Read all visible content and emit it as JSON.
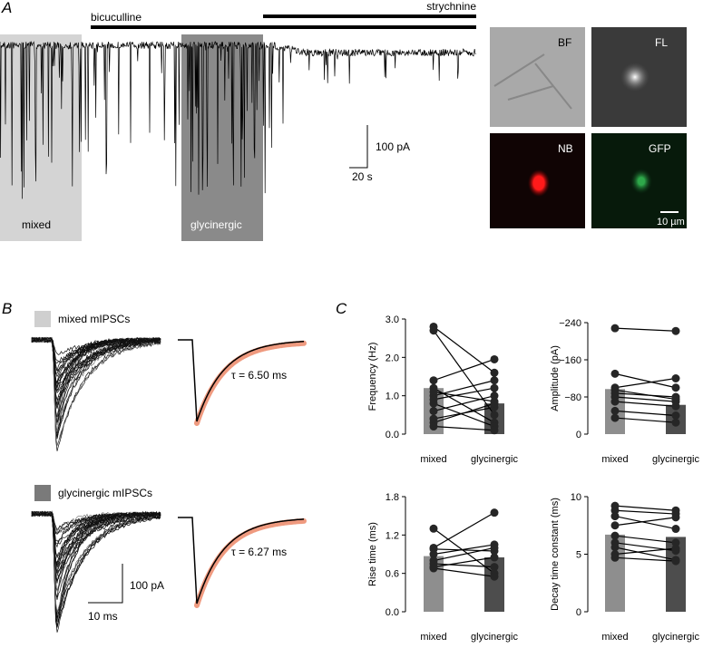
{
  "panels": {
    "A": {
      "label": "A",
      "bicuculline": "bicuculline",
      "strychnine": "strychnine",
      "scale_current": "100 pA",
      "scale_time": "20 s",
      "mixed": "mixed",
      "glycinergic": "glycinergic",
      "images": [
        "BF",
        "FL",
        "NB",
        "GFP"
      ],
      "scale_micron": "10 µm"
    },
    "B": {
      "label": "B",
      "mixed_legend": "mixed mIPSCs",
      "glycinergic_legend": "glycinergic mIPSCs",
      "tau_mixed": "τ = 6.50 ms",
      "tau_glycinergic": "τ = 6.27 ms",
      "scale_current": "100 pA",
      "scale_time": "10 ms"
    },
    "C": {
      "label": "C"
    }
  },
  "chart_data": [
    {
      "type": "bar",
      "y_label": "Frequency (Hz)",
      "categories": [
        "mixed",
        "glycinergic"
      ],
      "colors": [
        "#8e8e8e",
        "#4d4d4d"
      ],
      "values": [
        1.2,
        0.8
      ],
      "ylim": [
        0,
        3
      ],
      "yticks": [
        {
          "value": 0,
          "label": "0.0"
        },
        {
          "value": 1,
          "label": "1.0"
        },
        {
          "value": 2,
          "label": "2.0"
        },
        {
          "value": 3,
          "label": "3.0"
        }
      ],
      "pairs": [
        [
          2.8,
          1.6
        ],
        [
          2.7,
          0.5
        ],
        [
          1.4,
          1.95
        ],
        [
          1.2,
          0.3
        ],
        [
          1.0,
          1.4
        ],
        [
          1.1,
          0.85
        ],
        [
          0.9,
          1.2
        ],
        [
          0.8,
          0.2
        ],
        [
          0.6,
          1.0
        ],
        [
          0.4,
          0.7
        ],
        [
          0.3,
          0.8
        ],
        [
          0.2,
          0.1
        ]
      ]
    },
    {
      "type": "bar",
      "y_label": "Amplitude (pA)",
      "categories": [
        "mixed",
        "glycinergic"
      ],
      "colors": [
        "#8e8e8e",
        "#4d4d4d"
      ],
      "values": [
        -97,
        -63
      ],
      "ylim": [
        0,
        -240
      ],
      "yticks": [
        0,
        {
          "value": -80,
          "label": "−80"
        },
        {
          "value": -160,
          "label": "−160"
        },
        {
          "value": -240,
          "label": "−240"
        }
      ],
      "pairs": [
        [
          -228,
          -222
        ],
        [
          -130,
          -100
        ],
        [
          -100,
          -120
        ],
        [
          -95,
          -75
        ],
        [
          -88,
          -80
        ],
        [
          -80,
          -70
        ],
        [
          -70,
          -60
        ],
        [
          -50,
          -40
        ],
        [
          -35,
          -25
        ]
      ]
    },
    {
      "type": "bar",
      "y_label": "Rise time (ms)",
      "categories": [
        "mixed",
        "glycinergic"
      ],
      "colors": [
        "#8e8e8e",
        "#4d4d4d"
      ],
      "values": [
        0.87,
        0.85
      ],
      "ylim": [
        0,
        1.8
      ],
      "yticks": [
        {
          "value": 0,
          "label": "0.0"
        },
        0.6,
        1.2,
        1.8
      ],
      "pairs": [
        [
          1.3,
          0.6
        ],
        [
          1.0,
          1.55
        ],
        [
          0.98,
          0.95
        ],
        [
          0.9,
          1.05
        ],
        [
          0.8,
          1.0
        ],
        [
          0.75,
          0.7
        ],
        [
          0.7,
          0.85
        ],
        [
          0.68,
          0.55
        ]
      ]
    },
    {
      "type": "bar",
      "y_label": "Decay time constant (ms)",
      "categories": [
        "mixed",
        "glycinergic"
      ],
      "colors": [
        "#8e8e8e",
        "#4d4d4d"
      ],
      "values": [
        6.7,
        6.5
      ],
      "ylim": [
        0,
        10
      ],
      "yticks": [
        0,
        5,
        10
      ],
      "pairs": [
        [
          9.2,
          8.8
        ],
        [
          8.8,
          8.5
        ],
        [
          8.3,
          7.2
        ],
        [
          7.5,
          8.2
        ],
        [
          6.6,
          6.0
        ],
        [
          6.0,
          5.3
        ],
        [
          5.6,
          4.5
        ],
        [
          5.0,
          5.5
        ],
        [
          4.7,
          4.4
        ]
      ]
    }
  ]
}
